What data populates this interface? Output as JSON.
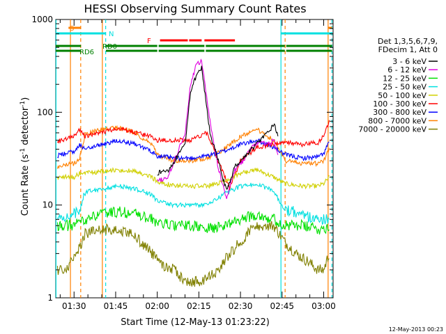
{
  "chart_data": {
    "type": "line",
    "title": "HESSI Observing Summary Count Rates",
    "xlabel": "Start Time (12-May-13 01:23:22)",
    "ylabel_main": "Count Rate (s",
    "ylabel_sup1": "-1",
    "ylabel_mid": " detector",
    "ylabel_sup2": "-1",
    "ylabel_end": ")",
    "yscale": "log",
    "ylim": [
      1,
      1000
    ],
    "xlim": [
      83.4,
      183.4
    ],
    "x_unit": "minutes after 00:00 UT, 12-May-2013",
    "x_ticks": [
      {
        "label": "01:30",
        "value": 90
      },
      {
        "label": "01:45",
        "value": 105
      },
      {
        "label": "02:00",
        "value": 120
      },
      {
        "label": "02:15",
        "value": 135
      },
      {
        "label": "02:30",
        "value": 150
      },
      {
        "label": "02:45",
        "value": 165
      },
      {
        "label": "03:00",
        "value": 180
      }
    ],
    "y_ticks": [
      {
        "label": "1",
        "value": 1
      },
      {
        "label": "10",
        "value": 10
      },
      {
        "label": "100",
        "value": 100
      },
      {
        "label": "1000",
        "value": 1000
      }
    ],
    "legend_header": [
      "Det 1,3,5,6,7,9,",
      "FDecim 1, Att 0"
    ],
    "legend_position": "right",
    "series": [
      {
        "name": "3 - 6 keV",
        "color": "#000000",
        "x": [
          120,
          124,
          127,
          130,
          132,
          134,
          136,
          139,
          142,
          145,
          148,
          151,
          154,
          157,
          160,
          162,
          163.7
        ],
        "values": [
          22,
          24,
          32,
          45,
          170,
          240,
          300,
          60,
          30,
          14,
          26,
          32,
          40,
          50,
          60,
          75,
          55
        ]
      },
      {
        "name": "6 - 12 keV",
        "color": "#e000e0",
        "x": [
          120,
          124,
          127,
          130,
          132,
          134,
          136,
          139,
          142,
          145,
          148,
          151,
          154,
          157,
          160,
          162,
          163.7
        ],
        "values": [
          18,
          20,
          35,
          60,
          200,
          320,
          360,
          80,
          25,
          12,
          24,
          30,
          42,
          48,
          45,
          50,
          35
        ]
      },
      {
        "name": "12 - 25 keV",
        "color": "#00e000",
        "x": [
          84,
          90,
          92,
          94,
          100,
          106,
          112,
          118,
          120,
          126,
          132,
          138,
          144,
          150,
          156,
          162,
          166,
          172,
          178,
          180,
          182
        ],
        "values": [
          6,
          6,
          6.5,
          7,
          8,
          8.5,
          8,
          7,
          6.5,
          6,
          6,
          5.5,
          6,
          7,
          8,
          7,
          6,
          6,
          5.5,
          5.5,
          6
        ]
      },
      {
        "name": "25 - 50 keV",
        "color": "#00e0e0",
        "x": [
          84,
          90,
          92,
          94,
          100,
          106,
          112,
          118,
          120,
          126,
          132,
          138,
          144,
          150,
          156,
          162,
          166,
          172,
          178,
          180,
          182
        ],
        "values": [
          7,
          8,
          9,
          14,
          15,
          16,
          15,
          13,
          11,
          10,
          10,
          10,
          13,
          16,
          17,
          14,
          9,
          8,
          7,
          7,
          7
        ]
      },
      {
        "name": "50 - 100 keV",
        "color": "#d0d000",
        "x": [
          84,
          90,
          92,
          94,
          100,
          106,
          112,
          118,
          120,
          126,
          132,
          138,
          144,
          150,
          156,
          162,
          166,
          172,
          178,
          180,
          182
        ],
        "values": [
          20,
          20,
          22,
          22,
          23,
          24,
          23,
          20,
          18,
          16,
          16,
          16,
          18,
          22,
          24,
          20,
          17,
          16,
          16,
          17,
          20
        ]
      },
      {
        "name": "100 - 300 keV",
        "color": "#ff0000",
        "x": [
          84,
          90,
          92,
          94,
          100,
          106,
          112,
          118,
          120,
          126,
          132,
          138,
          142,
          146,
          150,
          156,
          162,
          166,
          172,
          178,
          180,
          182
        ],
        "values": [
          48,
          55,
          65,
          55,
          60,
          68,
          60,
          55,
          50,
          50,
          50,
          60,
          30,
          15,
          30,
          42,
          45,
          48,
          45,
          47,
          55,
          80
        ]
      },
      {
        "name": "300 - 800 keV",
        "color": "#0000ff",
        "x": [
          84,
          90,
          92,
          94,
          100,
          106,
          112,
          118,
          120,
          126,
          132,
          138,
          144,
          150,
          156,
          162,
          166,
          172,
          178,
          180,
          182
        ],
        "values": [
          34,
          38,
          45,
          40,
          45,
          50,
          45,
          38,
          34,
          32,
          32,
          34,
          38,
          45,
          50,
          42,
          35,
          32,
          33,
          36,
          48
        ]
      },
      {
        "name": "800 - 7000 keV",
        "color": "#ff8000",
        "x": [
          84,
          90,
          92,
          94,
          100,
          106,
          112,
          118,
          120,
          126,
          132,
          138,
          144,
          150,
          156,
          162,
          166,
          172,
          178,
          180,
          182
        ],
        "values": [
          26,
          28,
          32,
          58,
          65,
          68,
          60,
          45,
          35,
          30,
          30,
          32,
          40,
          55,
          65,
          50,
          30,
          28,
          28,
          30,
          40
        ]
      },
      {
        "name": "7000 - 20000 keV",
        "color": "#808000",
        "x": [
          84,
          88,
          90,
          92,
          94,
          98,
          102,
          106,
          110,
          114,
          118,
          122,
          126,
          130,
          134,
          138,
          142,
          146,
          150,
          154,
          158,
          162,
          166,
          170,
          174,
          178,
          180,
          182
        ],
        "values": [
          2,
          2.2,
          3,
          3.5,
          5,
          5.2,
          5.5,
          5.5,
          5,
          4,
          3,
          2.2,
          2,
          1.5,
          1.5,
          1.6,
          2,
          3,
          4,
          5.5,
          6,
          6,
          4,
          3,
          2.5,
          2,
          2,
          3
        ]
      }
    ],
    "flag_bars": [
      {
        "label": "S",
        "color": "#ff8000",
        "segments": [
          [
            88,
            92.5
          ],
          [
            181.5,
            183
          ]
        ]
      },
      {
        "label": "N",
        "color": "#00e0e0",
        "segments": [
          [
            83.4,
            101.5
          ],
          [
            164.5,
            183
          ]
        ]
      },
      {
        "label": "F",
        "color": "#ff0000",
        "segments": [
          [
            121,
            131
          ],
          [
            131.5,
            136
          ],
          [
            137,
            148
          ]
        ]
      },
      {
        "label": "RD0",
        "color": "#008000",
        "segments": [
          [
            83.4,
            92.5
          ],
          [
            101.5,
            120
          ],
          [
            120.5,
            137
          ],
          [
            137.5,
            166
          ],
          [
            166.5,
            183
          ]
        ]
      },
      {
        "label": "RD6",
        "color": "#008000",
        "segments": [
          [
            83.4,
            92.5
          ],
          [
            101.5,
            120
          ],
          [
            120.5,
            137
          ],
          [
            137.5,
            166
          ],
          [
            166.5,
            183
          ]
        ]
      }
    ],
    "vertical_markers": [
      {
        "x": 83.5,
        "color": "#00e0e0",
        "style": "solid"
      },
      {
        "x": 88.7,
        "color": "#ff8000",
        "style": "solid"
      },
      {
        "x": 92.4,
        "color": "#ff8000",
        "style": "dashed"
      },
      {
        "x": 100.2,
        "color": "#ff8000",
        "style": "solid"
      },
      {
        "x": 101.4,
        "color": "#00e0e0",
        "style": "dashed"
      },
      {
        "x": 164.6,
        "color": "#00e0e0",
        "style": "solid"
      },
      {
        "x": 166.1,
        "color": "#ff8000",
        "style": "dashed"
      },
      {
        "x": 181.6,
        "color": "#ff8000",
        "style": "solid"
      },
      {
        "x": 183.0,
        "color": "#00e0e0",
        "style": "dashed"
      }
    ],
    "footer_date": "12-May-2013 00:23"
  }
}
